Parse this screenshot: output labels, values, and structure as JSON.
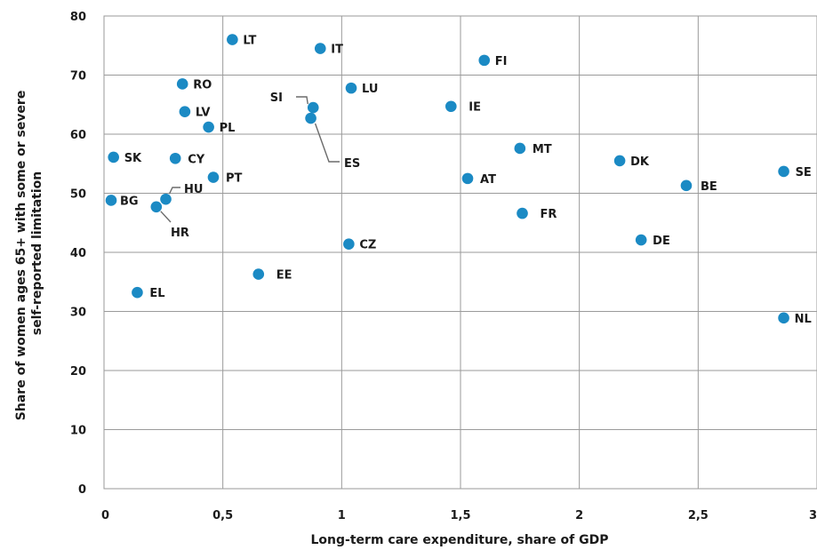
{
  "chart_data": {
    "type": "scatter",
    "xlabel": "Long-term care expenditure, share of GDP",
    "ylabel_lines": [
      "Share of women ages 65+ with some or severe",
      "self-reported limitation"
    ],
    "xlim": [
      0,
      3
    ],
    "ylim": [
      0,
      80
    ],
    "x_ticks": [
      "0",
      "0,5",
      "1",
      "1,5",
      "2",
      "2,5",
      "3"
    ],
    "y_ticks": [
      "0",
      "10",
      "20",
      "30",
      "40",
      "50",
      "60",
      "70",
      "80"
    ],
    "grid": true,
    "marker_color": "#1b8ac4",
    "points": [
      {
        "label": "LT",
        "x": 0.54,
        "y": 76.0
      },
      {
        "label": "IT",
        "x": 0.91,
        "y": 74.5
      },
      {
        "label": "FI",
        "x": 1.6,
        "y": 72.5
      },
      {
        "label": "RO",
        "x": 0.33,
        "y": 68.5
      },
      {
        "label": "LU",
        "x": 1.04,
        "y": 67.8
      },
      {
        "label": "SI",
        "x": 0.88,
        "y": 64.5
      },
      {
        "label": "IE",
        "x": 1.46,
        "y": 64.7
      },
      {
        "label": "LV",
        "x": 0.34,
        "y": 63.8
      },
      {
        "label": "ES",
        "x": 0.87,
        "y": 62.7
      },
      {
        "label": "PL",
        "x": 0.44,
        "y": 61.2
      },
      {
        "label": "MT",
        "x": 1.75,
        "y": 57.6
      },
      {
        "label": "SK",
        "x": 0.04,
        "y": 56.1
      },
      {
        "label": "CY",
        "x": 0.3,
        "y": 55.9
      },
      {
        "label": "DK",
        "x": 2.17,
        "y": 55.5
      },
      {
        "label": "SE",
        "x": 2.86,
        "y": 53.7
      },
      {
        "label": "PT",
        "x": 0.46,
        "y": 52.7
      },
      {
        "label": "AT",
        "x": 1.53,
        "y": 52.5
      },
      {
        "label": "BE",
        "x": 2.45,
        "y": 51.3
      },
      {
        "label": "HU",
        "x": 0.26,
        "y": 49.0
      },
      {
        "label": "BG",
        "x": 0.03,
        "y": 48.8
      },
      {
        "label": "HR",
        "x": 0.22,
        "y": 47.7
      },
      {
        "label": "FR",
        "x": 1.76,
        "y": 46.6
      },
      {
        "label": "DE",
        "x": 2.26,
        "y": 42.1
      },
      {
        "label": "CZ",
        "x": 1.03,
        "y": 41.4
      },
      {
        "label": "EE",
        "x": 0.65,
        "y": 36.3
      },
      {
        "label": "EL",
        "x": 0.14,
        "y": 33.2
      },
      {
        "label": "NL",
        "x": 2.86,
        "y": 28.9
      }
    ]
  }
}
